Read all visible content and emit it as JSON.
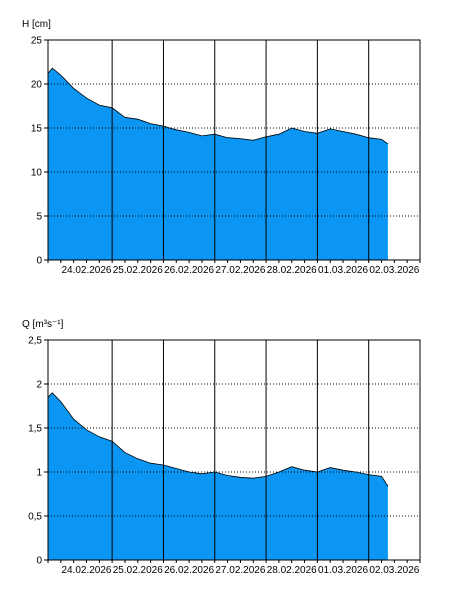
{
  "colors": {
    "fill": "#0A96F2",
    "outline": "#000000",
    "grid": "#000000",
    "frame": "#000000"
  },
  "chart_data": [
    {
      "type": "area",
      "ylabel": "H [cm]",
      "ylim": [
        0,
        25
      ],
      "yticks": [
        "0",
        "5",
        "10",
        "15",
        "20",
        "25"
      ],
      "xlim": [
        "23.02.2026 18:00",
        "03.03.2026 00:00"
      ],
      "xtick_labels": [
        "24.02.2026",
        "25.02.2026",
        "26.02.2026",
        "27.02.2026",
        "28.02.2026",
        "01.03.2026",
        "02.03.2026"
      ],
      "grid": "horizontal dotted, vertical solid at day boundaries",
      "x": [
        "23.02.2026 18:00",
        "23.02.2026 20:00",
        "24.02.2026 00:00",
        "24.02.2026 06:00",
        "24.02.2026 12:00",
        "24.02.2026 18:00",
        "25.02.2026 00:00",
        "25.02.2026 06:00",
        "25.02.2026 12:00",
        "25.02.2026 18:00",
        "26.02.2026 00:00",
        "26.02.2026 06:00",
        "26.02.2026 12:00",
        "26.02.2026 18:00",
        "27.02.2026 00:00",
        "27.02.2026 06:00",
        "27.02.2026 12:00",
        "27.02.2026 18:00",
        "28.02.2026 00:00",
        "28.02.2026 06:00",
        "28.02.2026 12:00",
        "28.02.2026 18:00",
        "01.03.2026 00:00",
        "01.03.2026 06:00",
        "01.03.2026 12:00",
        "01.03.2026 18:00",
        "02.03.2026 00:00",
        "02.03.2026 06:00",
        "02.03.2026 09:00"
      ],
      "values": [
        21.2,
        21.8,
        21.0,
        19.5,
        18.4,
        17.6,
        17.3,
        16.2,
        16.0,
        15.5,
        15.2,
        14.8,
        14.5,
        14.1,
        14.3,
        13.9,
        13.8,
        13.6,
        14.0,
        14.3,
        15.0,
        14.6,
        14.4,
        14.9,
        14.6,
        14.3,
        13.9,
        13.7,
        13.2
      ]
    },
    {
      "type": "area",
      "ylabel": "Q [m³s⁻¹]",
      "ylim": [
        0,
        2.5
      ],
      "yticks": [
        "0",
        "0,5",
        "1",
        "1,5",
        "2",
        "2,5"
      ],
      "xlim": [
        "23.02.2026 18:00",
        "03.03.2026 00:00"
      ],
      "xtick_labels": [
        "24.02.2026",
        "25.02.2026",
        "26.02.2026",
        "27.02.2026",
        "28.02.2026",
        "01.03.2026",
        "02.03.2026"
      ],
      "grid": "horizontal dotted, vertical solid at day boundaries",
      "x": [
        "23.02.2026 18:00",
        "23.02.2026 20:00",
        "24.02.2026 00:00",
        "24.02.2026 06:00",
        "24.02.2026 12:00",
        "24.02.2026 18:00",
        "25.02.2026 00:00",
        "25.02.2026 06:00",
        "25.02.2026 12:00",
        "25.02.2026 18:00",
        "26.02.2026 00:00",
        "26.02.2026 06:00",
        "26.02.2026 12:00",
        "26.02.2026 18:00",
        "27.02.2026 00:00",
        "27.02.2026 06:00",
        "27.02.2026 12:00",
        "27.02.2026 18:00",
        "28.02.2026 00:00",
        "28.02.2026 06:00",
        "28.02.2026 12:00",
        "28.02.2026 18:00",
        "01.03.2026 00:00",
        "01.03.2026 06:00",
        "01.03.2026 12:00",
        "01.03.2026 18:00",
        "02.03.2026 00:00",
        "02.03.2026 06:00",
        "02.03.2026 09:00"
      ],
      "values": [
        1.85,
        1.9,
        1.8,
        1.6,
        1.48,
        1.4,
        1.35,
        1.22,
        1.15,
        1.1,
        1.08,
        1.04,
        1.0,
        0.98,
        1.0,
        0.96,
        0.94,
        0.93,
        0.95,
        1.0,
        1.06,
        1.02,
        1.0,
        1.05,
        1.02,
        1.0,
        0.97,
        0.95,
        0.84
      ]
    }
  ]
}
